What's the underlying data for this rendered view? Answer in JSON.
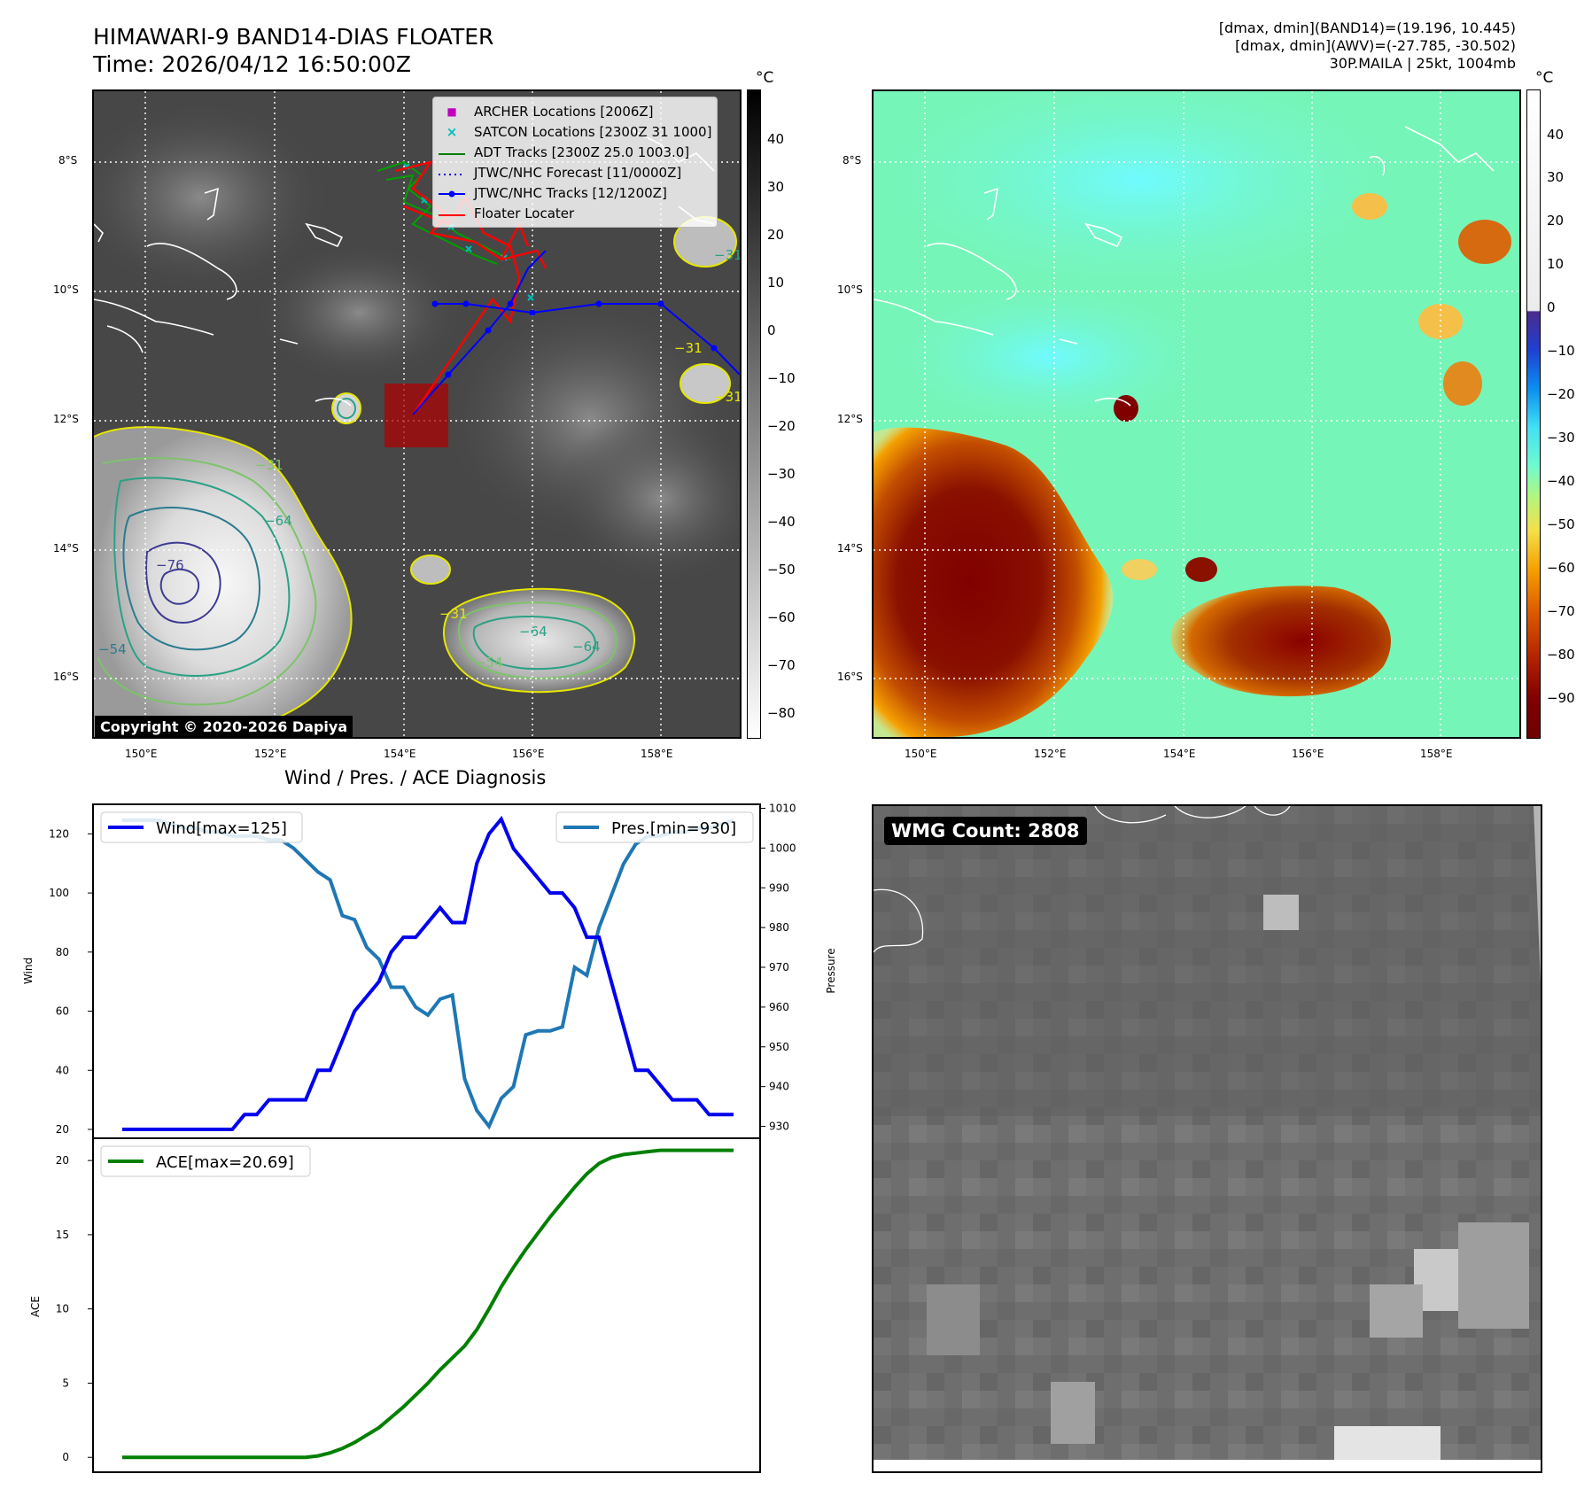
{
  "header": {
    "title_line1": "HIMAWARI-9 BAND14-DIAS FLOATER",
    "title_line2": "Time: 2026/04/12 16:50:00Z",
    "right_line1": "[dmax, dmin](BAND14)=(19.196, 10.445)",
    "right_line2": "[dmax, dmin](AWV)=(-27.785, -30.502)",
    "right_line3": "30P.MAILA | 25kt, 1004mb"
  },
  "ir_panel": {
    "unit": "°C",
    "colorbar_ticks": [
      "40",
      "30",
      "20",
      "10",
      "0",
      "−10",
      "−20",
      "−30",
      "−40",
      "−50",
      "−60",
      "−70",
      "−80"
    ],
    "copyright": "Copyright © 2020-2026 Dapiya",
    "legend": [
      {
        "label": "ARCHER Locations [2006Z]",
        "symbol": "■",
        "color": "#c000c0"
      },
      {
        "label": "SATCON Locations [2300Z 31 1000]",
        "symbol": "×",
        "color": "#00bcbc"
      },
      {
        "label": "ADT Tracks [2300Z 25.0 1003.0]",
        "symbol": "line",
        "color": "#008000"
      },
      {
        "label": "JTWC/NHC Forecast [11/0000Z]",
        "symbol": "dots",
        "color": "#0000cc"
      },
      {
        "label": "JTWC/NHC Tracks [12/1200Z]",
        "symbol": "linedot",
        "color": "#0000ff"
      },
      {
        "label": "Floater Locater",
        "symbol": "line",
        "color": "#ff0000"
      }
    ],
    "contour_labels": [
      "−31",
      "−31",
      "−31",
      "−64",
      "−76",
      "−54",
      "−31",
      "−64",
      "−54",
      "−64",
      "−31",
      "−31",
      "−31"
    ]
  },
  "enh_panel": {
    "unit": "°C",
    "colorbar_ticks": [
      "40",
      "30",
      "20",
      "10",
      "0",
      "−10",
      "−20",
      "−30",
      "−40",
      "−50",
      "−60",
      "−70",
      "−80",
      "−90"
    ]
  },
  "map_axes": {
    "lat_labels": [
      "8°S",
      "10°S",
      "12°S",
      "14°S",
      "16°S"
    ],
    "lon_labels": [
      "150°E",
      "152°E",
      "154°E",
      "156°E",
      "158°E"
    ]
  },
  "diagnosis": {
    "title": "Wind / Pres. / ACE Diagnosis",
    "wind_ylabel": "Wind",
    "pres_ylabel": "Pressure",
    "ace_ylabel": "ACE",
    "wind_legend": "Wind[max=125]",
    "pres_legend": "Pres.[min=930]",
    "ace_legend": "ACE[max=20.69]",
    "wind_ticks": [
      "120",
      "100",
      "80",
      "60",
      "40",
      "20"
    ],
    "pres_ticks": [
      "1010",
      "1000",
      "990",
      "980",
      "970",
      "960",
      "950",
      "940",
      "930"
    ],
    "ace_ticks": [
      "20",
      "15",
      "10",
      "5",
      "0"
    ],
    "colors": {
      "wind": "#0000ee",
      "pres": "#1f77b4",
      "ace": "#008000"
    }
  },
  "chart_data": [
    {
      "type": "line",
      "ylabel": "Wind",
      "ylim": [
        17,
        130
      ],
      "series": [
        {
          "name": "Wind[max=125]",
          "values": [
            20,
            20,
            20,
            20,
            20,
            20,
            20,
            20,
            20,
            20,
            25,
            25,
            30,
            30,
            30,
            30,
            40,
            40,
            50,
            60,
            65,
            70,
            80,
            85,
            85,
            90,
            95,
            90,
            90,
            110,
            120,
            125,
            115,
            110,
            105,
            100,
            100,
            95,
            85,
            85,
            70,
            55,
            40,
            40,
            35,
            30,
            30,
            30,
            25,
            25,
            25
          ]
        }
      ]
    },
    {
      "type": "line",
      "ylabel": "Pressure",
      "ylim": [
        927,
        1011
      ],
      "series": [
        {
          "name": "Pres.[min=930]",
          "values": [
            1007,
            1007,
            1007,
            1007,
            1006,
            1005,
            1005,
            1004,
            1004,
            1003,
            1003,
            1003,
            1002,
            1002,
            1000,
            997,
            994,
            992,
            983,
            982,
            975,
            972,
            965,
            965,
            960,
            958,
            962,
            963,
            942,
            934,
            930,
            937,
            940,
            953,
            954,
            954,
            955,
            970,
            968,
            980,
            988,
            996,
            1001,
            1003,
            1003,
            1004,
            1004,
            1005,
            1005,
            1006,
            1007
          ]
        }
      ]
    },
    {
      "type": "line",
      "ylabel": "ACE",
      "ylim": [
        -1,
        21.5
      ],
      "series": [
        {
          "name": "ACE[max=20.69]",
          "values": [
            0,
            0,
            0,
            0,
            0,
            0,
            0,
            0,
            0,
            0,
            0,
            0,
            0,
            0,
            0,
            0,
            0.1,
            0.3,
            0.6,
            1.0,
            1.5,
            2.0,
            2.7,
            3.4,
            4.2,
            5.0,
            5.9,
            6.7,
            7.5,
            8.6,
            10.0,
            11.5,
            12.8,
            14.0,
            15.1,
            16.2,
            17.2,
            18.2,
            19.1,
            19.8,
            20.2,
            20.4,
            20.5,
            20.6,
            20.69,
            20.69,
            20.69,
            20.69,
            20.69,
            20.69,
            20.69
          ]
        }
      ]
    }
  ],
  "zoom_panel": {
    "wmg_label": "WMG Count: 2808"
  }
}
